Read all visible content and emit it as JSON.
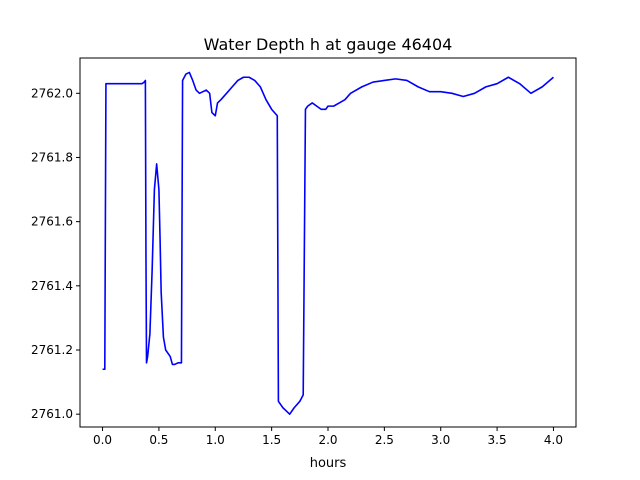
{
  "chart_data": {
    "type": "line",
    "title": "Water Depth h at gauge 46404",
    "xlabel": "hours",
    "ylabel": "",
    "xlim": [
      -0.2,
      4.2
    ],
    "ylim": [
      2760.96,
      2762.11
    ],
    "xticks": [
      0.0,
      0.5,
      1.0,
      1.5,
      2.0,
      2.5,
      3.0,
      3.5,
      4.0
    ],
    "xtick_labels": [
      "0.0",
      "0.5",
      "1.0",
      "1.5",
      "2.0",
      "2.5",
      "3.0",
      "3.5",
      "4.0"
    ],
    "yticks": [
      2761.0,
      2761.2,
      2761.4,
      2761.6,
      2761.8,
      2762.0
    ],
    "ytick_labels": [
      "2761.0",
      "2761.2",
      "2761.4",
      "2761.6",
      "2761.8",
      "2762.0"
    ],
    "grid": false,
    "series": [
      {
        "color": "#0000ff",
        "x": [
          0.0,
          0.02,
          0.03,
          0.1,
          0.2,
          0.3,
          0.35,
          0.37,
          0.38,
          0.385,
          0.39,
          0.4,
          0.42,
          0.44,
          0.46,
          0.48,
          0.5,
          0.51,
          0.52,
          0.54,
          0.56,
          0.6,
          0.62,
          0.64,
          0.67,
          0.7,
          0.71,
          0.74,
          0.77,
          0.8,
          0.83,
          0.86,
          0.89,
          0.92,
          0.95,
          0.97,
          1.0,
          1.02,
          1.05,
          1.1,
          1.15,
          1.2,
          1.25,
          1.3,
          1.35,
          1.4,
          1.45,
          1.5,
          1.55,
          1.56,
          1.6,
          1.63,
          1.66,
          1.7,
          1.75,
          1.78,
          1.8,
          1.82,
          1.86,
          1.9,
          1.94,
          1.98,
          2.0,
          2.05,
          2.1,
          2.15,
          2.2,
          2.3,
          2.4,
          2.5,
          2.6,
          2.7,
          2.8,
          2.9,
          3.0,
          3.1,
          3.2,
          3.3,
          3.4,
          3.5,
          3.6,
          3.7,
          3.8,
          3.9,
          4.0
        ],
        "y": [
          2761.14,
          2761.14,
          2762.03,
          2762.03,
          2762.03,
          2762.03,
          2762.03,
          2762.035,
          2762.04,
          2761.5,
          2761.16,
          2761.18,
          2761.25,
          2761.45,
          2761.7,
          2761.78,
          2761.7,
          2761.55,
          2761.38,
          2761.24,
          2761.2,
          2761.18,
          2761.155,
          2761.155,
          2761.16,
          2761.16,
          2762.04,
          2762.06,
          2762.065,
          2762.04,
          2762.01,
          2762.0,
          2762.005,
          2762.01,
          2762.0,
          2761.94,
          2761.93,
          2761.97,
          2761.98,
          2762.0,
          2762.02,
          2762.04,
          2762.05,
          2762.05,
          2762.04,
          2762.02,
          2761.98,
          2761.95,
          2761.93,
          2761.04,
          2761.02,
          2761.01,
          2761.0,
          2761.02,
          2761.04,
          2761.06,
          2761.95,
          2761.96,
          2761.97,
          2761.96,
          2761.95,
          2761.95,
          2761.96,
          2761.96,
          2761.97,
          2761.98,
          2762.0,
          2762.02,
          2762.035,
          2762.04,
          2762.045,
          2762.04,
          2762.02,
          2762.005,
          2762.005,
          2762.0,
          2761.99,
          2762.0,
          2762.02,
          2762.03,
          2762.05,
          2762.03,
          2762.0,
          2762.02,
          2762.05
        ]
      }
    ]
  }
}
